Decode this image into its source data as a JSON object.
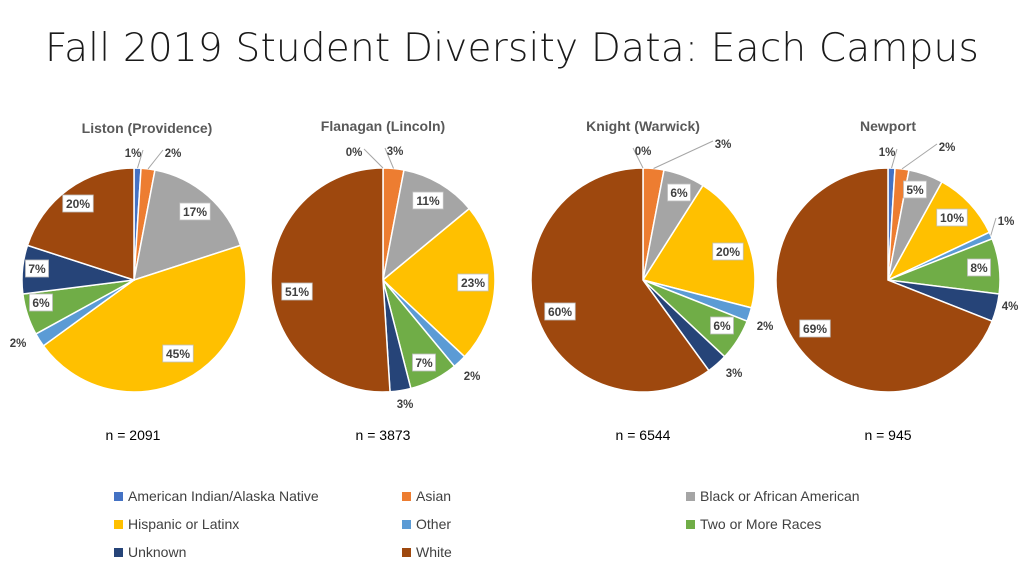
{
  "slide": {
    "title": "Fall 2019 Student Diversity Data: Each Campus"
  },
  "colors": {
    "American Indian/Alaska Native": "#4472c4",
    "Asian": "#ed7d31",
    "Black or African American": "#a5a5a5",
    "Hispanic or Latinx": "#ffc000",
    "Other": "#5b9bd5",
    "Two or More Races": "#70ad47",
    "Unknown": "#264478",
    "White": "#9e480e"
  },
  "legend": [
    "American Indian/Alaska Native",
    "Asian",
    "Black or African American",
    "Hispanic or Latinx",
    "Other",
    "Two or More Races",
    "Unknown",
    "White"
  ],
  "chart_data": [
    {
      "type": "pie",
      "title": "Liston (Providence)",
      "n_label": "n = 2091",
      "categories": [
        "American Indian/Alaska Native",
        "Asian",
        "Black or African American",
        "Hispanic or Latinx",
        "Other",
        "Two or More Races",
        "Unknown",
        "White"
      ],
      "values": [
        1,
        2,
        17,
        45,
        2,
        6,
        7,
        20
      ],
      "labels": [
        "1%",
        "2%",
        "17%",
        "45%",
        "2%",
        "6%",
        "7%",
        "20%"
      ]
    },
    {
      "type": "pie",
      "title": "Flanagan (Lincoln)",
      "n_label": "n = 3873",
      "categories": [
        "American Indian/Alaska Native",
        "Asian",
        "Black or African American",
        "Hispanic or Latinx",
        "Other",
        "Two or More Races",
        "Unknown",
        "White"
      ],
      "values": [
        0,
        3,
        11,
        23,
        2,
        7,
        3,
        51
      ],
      "labels": [
        "0%",
        "3%",
        "11%",
        "23%",
        "2%",
        "7%",
        "3%",
        "51%"
      ]
    },
    {
      "type": "pie",
      "title": "Knight (Warwick)",
      "n_label": "n = 6544",
      "categories": [
        "American Indian/Alaska Native",
        "Asian",
        "Black or African American",
        "Hispanic or Latinx",
        "Other",
        "Two or More Races",
        "Unknown",
        "White"
      ],
      "values": [
        0,
        3,
        6,
        20,
        2,
        6,
        3,
        60
      ],
      "labels": [
        "0%",
        "3%",
        "6%",
        "20%",
        "2%",
        "6%",
        "3%",
        "60%"
      ]
    },
    {
      "type": "pie",
      "title": "Newport",
      "n_label": "n = 945",
      "categories": [
        "American Indian/Alaska Native",
        "Asian",
        "Black or African American",
        "Hispanic or Latinx",
        "Other",
        "Two or More Races",
        "Unknown",
        "White"
      ],
      "values": [
        1,
        2,
        5,
        10,
        1,
        8,
        4,
        69
      ],
      "labels": [
        "1%",
        "2%",
        "5%",
        "10%",
        "1%",
        "8%",
        "4%",
        "69%"
      ]
    }
  ]
}
